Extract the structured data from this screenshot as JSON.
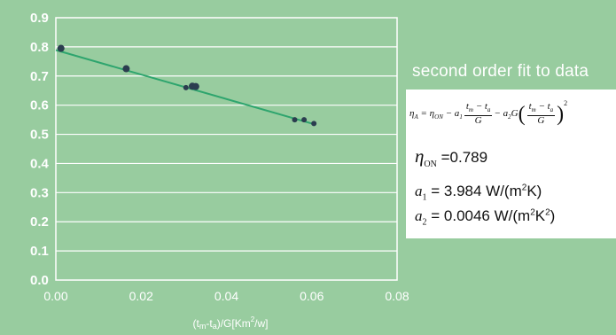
{
  "chart_data": {
    "type": "scatter",
    "title": "",
    "xlabel": "(tm-ta)/G[Km²/w]",
    "xlabel_parts": {
      "prefix": "(t",
      "m": "m",
      "mid": "-t",
      "a": "a",
      "rest": ")/G[Km",
      "sup": "2",
      "end": "/w]"
    },
    "ylabel": "",
    "xlim": [
      0.0,
      0.08
    ],
    "ylim": [
      0.0,
      0.9
    ],
    "x_ticks": [
      "0.00",
      "0.02",
      "0.04",
      "0.06",
      "0.08"
    ],
    "y_ticks": [
      "0.0",
      "0.1",
      "0.2",
      "0.3",
      "0.4",
      "0.5",
      "0.6",
      "0.7",
      "0.8",
      "0.9"
    ],
    "grid": "horizontal",
    "series": [
      {
        "type": "scatter",
        "color": "#2b3d4f",
        "points": [
          {
            "x": 0.0012,
            "y": 0.795
          },
          {
            "x": 0.0165,
            "y": 0.725
          },
          {
            "x": 0.0305,
            "y": 0.66
          },
          {
            "x": 0.032,
            "y": 0.665
          },
          {
            "x": 0.0328,
            "y": 0.664
          },
          {
            "x": 0.056,
            "y": 0.55
          },
          {
            "x": 0.0582,
            "y": 0.55
          },
          {
            "x": 0.0605,
            "y": 0.537
          }
        ]
      },
      {
        "type": "line",
        "color": "#2ea56e",
        "points": [
          {
            "x": 0.0,
            "y": 0.789
          },
          {
            "x": 0.0605,
            "y": 0.535
          }
        ]
      }
    ]
  },
  "fit": {
    "title": "second order fit to data",
    "eta0_value": "=0.789",
    "a1_value": "= 3.984 W/(m",
    "a1_sup": "2",
    "a1_end": "K)",
    "a2_value": "= 0.0046 W/(m",
    "a2_sup": "2",
    "a2_mid": "K",
    "a2_sup2": "2",
    "a2_end": ")"
  },
  "colors": {
    "background": "#98cc9f",
    "plot_border": "#ffffff",
    "marker": "#2b3d4f",
    "fit_line": "#2ea56e",
    "text": "#ffffff"
  }
}
